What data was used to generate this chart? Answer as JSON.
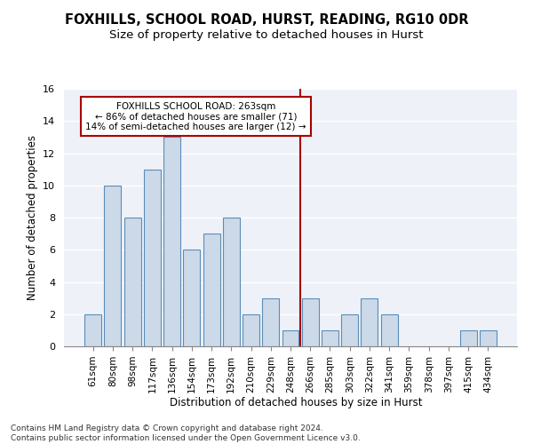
{
  "title1": "FOXHILLS, SCHOOL ROAD, HURST, READING, RG10 0DR",
  "title2": "Size of property relative to detached houses in Hurst",
  "xlabel": "Distribution of detached houses by size in Hurst",
  "ylabel": "Number of detached properties",
  "bin_labels": [
    "61sqm",
    "80sqm",
    "98sqm",
    "117sqm",
    "136sqm",
    "154sqm",
    "173sqm",
    "192sqm",
    "210sqm",
    "229sqm",
    "248sqm",
    "266sqm",
    "285sqm",
    "303sqm",
    "322sqm",
    "341sqm",
    "359sqm",
    "378sqm",
    "397sqm",
    "415sqm",
    "434sqm"
  ],
  "bar_heights": [
    2,
    10,
    8,
    11,
    13,
    6,
    7,
    8,
    2,
    3,
    1,
    3,
    1,
    2,
    3,
    2,
    0,
    0,
    0,
    1,
    1
  ],
  "bar_color": "#ccd9e8",
  "bar_edge_color": "#5b8db8",
  "vline_x": 10.5,
  "vline_color": "#aa0000",
  "annotation_box_color": "#aa0000",
  "highlight_label": "FOXHILLS SCHOOL ROAD: 263sqm",
  "highlight_line1": "← 86% of detached houses are smaller (71)",
  "highlight_line2": "14% of semi-detached houses are larger (12) →",
  "ylim": [
    0,
    16
  ],
  "yticks": [
    0,
    2,
    4,
    6,
    8,
    10,
    12,
    14,
    16
  ],
  "footer1": "Contains HM Land Registry data © Crown copyright and database right 2024.",
  "footer2": "Contains public sector information licensed under the Open Government Licence v3.0.",
  "bg_color": "#eef2f8",
  "grid_color": "#ffffff"
}
